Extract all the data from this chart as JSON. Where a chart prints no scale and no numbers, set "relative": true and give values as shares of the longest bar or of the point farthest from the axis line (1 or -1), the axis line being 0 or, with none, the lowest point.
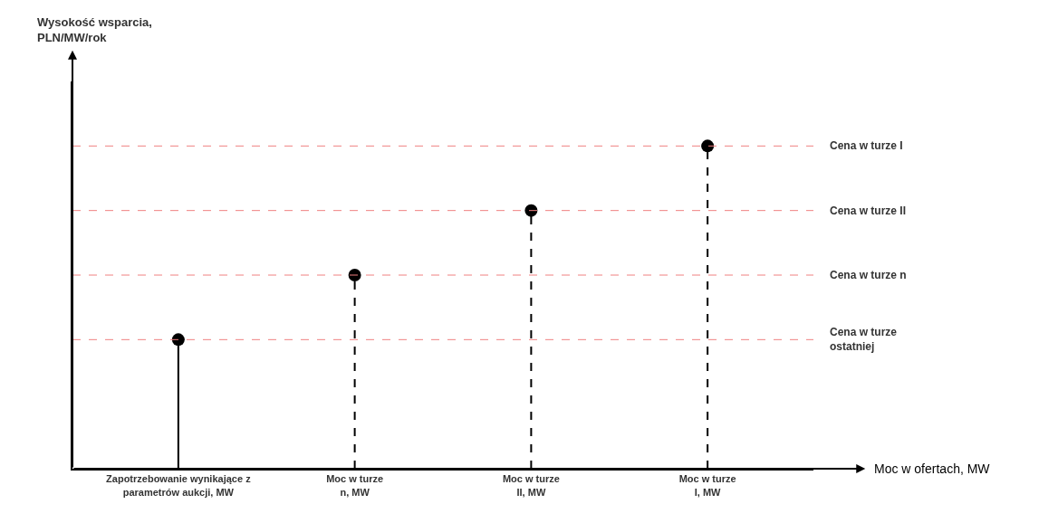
{
  "chart_data": {
    "type": "lollipop",
    "relative": true,
    "xlabel": "Moc w ofertach, MW",
    "annotations": [
      "Wysokość wsparcia, PLN/MW/rok"
    ],
    "categories": [
      "Zapotrzebowanie wynikające z parametrów aukcji, MW",
      "Moc w turze n, MW",
      "Moc w turze II, MW",
      "Moc w turze I, MW"
    ],
    "series": [
      {
        "color": "#000000",
        "line_style": "solid",
        "values": [
          0.4,
          null,
          null,
          null
        ]
      },
      {
        "color": "#000000",
        "line_style": "dashed",
        "values": [
          null,
          0.6,
          0.8,
          1.0
        ]
      }
    ],
    "marker": "circle",
    "ref_lines": [
      {
        "axis": "y",
        "value": 1.0,
        "label": "Cena w turze I",
        "color": "#f08080",
        "line_style": "dashed"
      },
      {
        "axis": "y",
        "value": 0.8,
        "label": "Cena w turze II",
        "color": "#f08080",
        "line_style": "dashed"
      },
      {
        "axis": "y",
        "value": 0.6,
        "label": "Cena w turze n",
        "color": "#f08080",
        "line_style": "dashed"
      },
      {
        "axis": "y",
        "value": 0.4,
        "label": "Cena w turze ostatniej",
        "color": "#f08080",
        "line_style": "dashed"
      }
    ]
  }
}
